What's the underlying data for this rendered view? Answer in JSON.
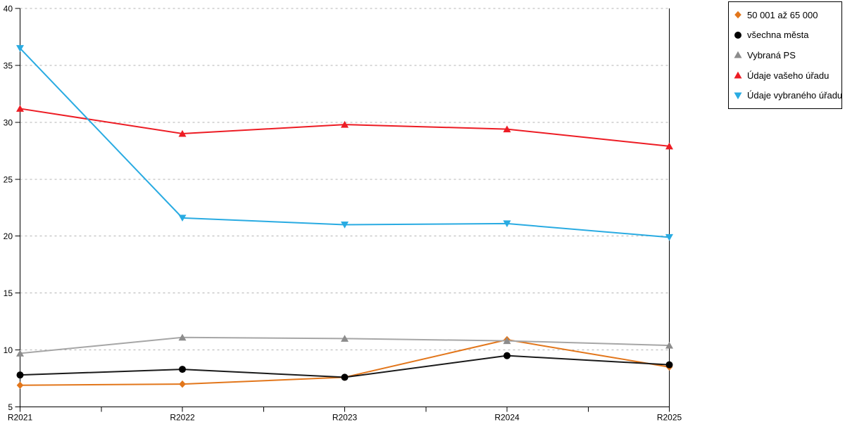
{
  "chart_data": {
    "type": "line",
    "title": "",
    "xlabel": "",
    "ylabel": "",
    "categories": [
      "R2021",
      "R2022",
      "R2023",
      "R2024",
      "R2025"
    ],
    "series": [
      {
        "name": "50 001 až 65 000",
        "marker": "diamond",
        "color": "#E2761B",
        "line_color": "#E2761B",
        "values": [
          6.9,
          7.0,
          7.6,
          10.9,
          8.5
        ]
      },
      {
        "name": "všechna města",
        "marker": "circle",
        "color": "#000000",
        "line_color": "#1A1A1A",
        "values": [
          7.8,
          8.3,
          7.6,
          9.5,
          8.7
        ]
      },
      {
        "name": "Vybraná PS",
        "marker": "triangle-up",
        "color": "#8C8C8C",
        "line_color": "#A6A6A6",
        "values": [
          9.7,
          11.1,
          11.0,
          10.8,
          10.4
        ]
      },
      {
        "name": "Údaje vašeho úřadu",
        "marker": "triangle-up",
        "color": "#ED1C24",
        "line_color": "#ED1C24",
        "values": [
          31.2,
          29.0,
          29.8,
          29.4,
          27.9
        ]
      },
      {
        "name": "Údaje vybraného úřadu",
        "marker": "triangle-down",
        "color": "#29ABE2",
        "line_color": "#29ABE2",
        "values": [
          36.5,
          21.6,
          21.0,
          21.1,
          19.9
        ]
      }
    ],
    "ylim": [
      5,
      40
    ],
    "y_ticks": [
      5,
      10,
      15,
      20,
      25,
      30,
      35,
      40
    ],
    "grid": "horizontal-dashed",
    "legend_position": "top-right-outside"
  },
  "colors": {
    "background": "#FFFFFF",
    "axis": "#000000",
    "gridline": "#B3B3B3",
    "legend_border": "#000000",
    "text": "#000000"
  }
}
